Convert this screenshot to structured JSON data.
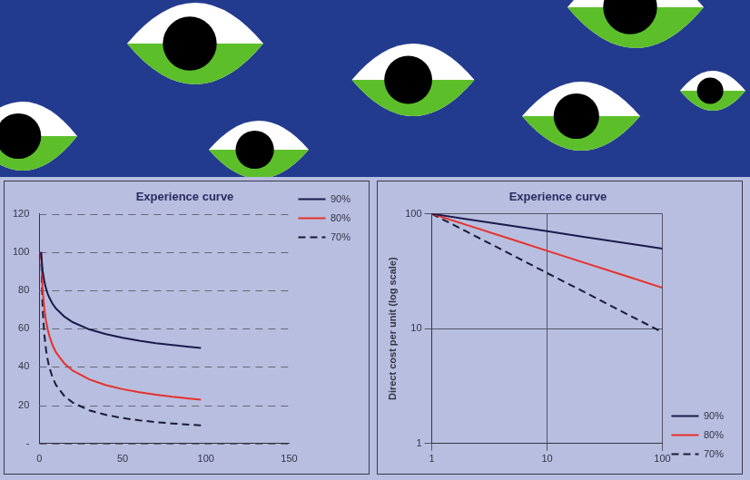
{
  "chart_data": [
    {
      "type": "line",
      "title": "Experience curve",
      "x": [
        1,
        2,
        3,
        4,
        5,
        6,
        8,
        10,
        15,
        20,
        30,
        40,
        50,
        60,
        70,
        80,
        90,
        97
      ],
      "series": [
        {
          "name": "90%",
          "color": "#1b1b4d",
          "line_style": "solid",
          "values": [
            100,
            90,
            84.6,
            81,
            78.3,
            76.2,
            72.9,
            70.5,
            66.3,
            63.4,
            59.6,
            57.1,
            55.2,
            53.7,
            52.4,
            51.4,
            50.5,
            49.9
          ]
        },
        {
          "name": "80%",
          "color": "#e8302a",
          "line_style": "solid",
          "values": [
            100,
            80,
            70.2,
            64,
            59.6,
            56.2,
            51.2,
            47.6,
            41.8,
            38.1,
            33.5,
            30.5,
            28.4,
            26.8,
            25.5,
            24.4,
            23.5,
            22.9
          ]
        },
        {
          "name": "70%",
          "color": "#1b1b33",
          "line_style": "dashed",
          "values": [
            100,
            70,
            56.8,
            49,
            43.7,
            39.7,
            34.3,
            30.5,
            24.8,
            21.4,
            17.3,
            15,
            13.3,
            12.1,
            11.2,
            10.5,
            9.8,
            9.5
          ]
        }
      ],
      "xlim": [
        0,
        150
      ],
      "xticks": [
        0,
        50,
        100,
        150
      ],
      "ylim": [
        0,
        120
      ],
      "yticks": [
        {
          "value": 0,
          "label": "-"
        },
        20,
        40,
        60,
        80,
        100,
        120
      ],
      "grid": "y",
      "legend": "upper right"
    },
    {
      "type": "line",
      "title": "Experience curve",
      "y_label": "Direct cost per unit (log scale)",
      "x": [
        1,
        2,
        5,
        10,
        20,
        50,
        100
      ],
      "series": [
        {
          "name": "90%",
          "color": "#1b1b4d",
          "line_style": "solid",
          "values": [
            100,
            90,
            78.3,
            70.5,
            63.4,
            55.2,
            49.7
          ]
        },
        {
          "name": "80%",
          "color": "#e8302a",
          "line_style": "solid",
          "values": [
            100,
            80,
            59.6,
            47.6,
            38.1,
            28.4,
            22.7
          ]
        },
        {
          "name": "70%",
          "color": "#1b1b33",
          "line_style": "dashed",
          "values": [
            100,
            70,
            43.7,
            30.5,
            21.4,
            13.3,
            9.3
          ]
        }
      ],
      "xlim": [
        1,
        100
      ],
      "xticks": [
        1,
        10,
        100
      ],
      "ylim": [
        1,
        100
      ],
      "yticks": [
        1,
        10,
        100
      ],
      "log": true,
      "grid": true,
      "legend": "lower right"
    }
  ]
}
